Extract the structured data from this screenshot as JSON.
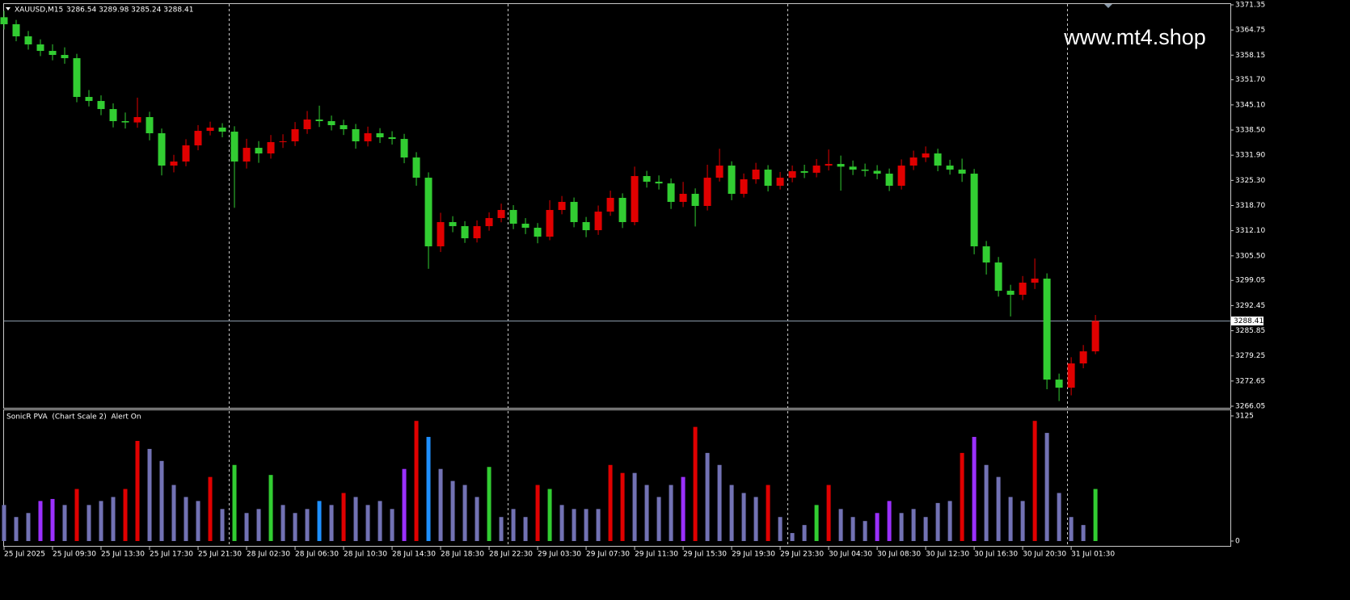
{
  "chart_data": [
    {
      "type": "candlestick",
      "symbol": "XAUUSD,M15",
      "quote": "3286.54 3289.98 3285.24 3288.41",
      "watermark": "www.mt4.shop",
      "up_color": "#e00000",
      "down_color": "#32cd32",
      "price_line": 3288.41,
      "price_line_color": "#8a9aaa",
      "xlim": [
        0,
        404.5
      ],
      "ylim": [
        3266.05,
        3371.35
      ],
      "yticks": [
        {
          "value": 3371.35,
          "label": "3371.35"
        },
        3364.75,
        3358.15,
        {
          "value": 3351.7,
          "label": "3351.70"
        },
        {
          "value": 3345.1,
          "label": "3345.10"
        },
        {
          "value": 3338.5,
          "label": "3338.50"
        },
        {
          "value": 3331.9,
          "label": "3331.90"
        },
        {
          "value": 3325.3,
          "label": "3325.30"
        },
        {
          "value": 3318.7,
          "label": "3318.70"
        },
        {
          "value": 3312.1,
          "label": "3312.10"
        },
        {
          "value": 3305.5,
          "label": "3305.50"
        },
        3299.05,
        3292.45,
        3285.85,
        3279.25,
        3272.65,
        3266.05
      ],
      "x": [
        0,
        4,
        8,
        12,
        16,
        20,
        24,
        28,
        32,
        36,
        40,
        44,
        48,
        52,
        56,
        60,
        64,
        68,
        72,
        76,
        80,
        84,
        88,
        92,
        96,
        100,
        104,
        108,
        112,
        116,
        120,
        124,
        128,
        132,
        136,
        140,
        144,
        148,
        152,
        156,
        160,
        164,
        168,
        172,
        176,
        180,
        184,
        188,
        192,
        196,
        200,
        204,
        208,
        212,
        216,
        220,
        224,
        228,
        232,
        236,
        240,
        244,
        248,
        252,
        256,
        260,
        264,
        268,
        272,
        276,
        280,
        284,
        288,
        292,
        296,
        300,
        304,
        308,
        312,
        316,
        320,
        324,
        328,
        332,
        336,
        340,
        344,
        348,
        352,
        356,
        360
      ],
      "open": [
        3368.1,
        3366.26,
        3363.09,
        3360.97,
        3359.27,
        3358.21,
        3357.36,
        3347.19,
        3346.13,
        3344.01,
        3340.84,
        3340.5,
        3341.9,
        3337.66,
        3329.18,
        3330.24,
        3334.48,
        3338.29,
        3339.14,
        3338.08,
        3330.24,
        3333.84,
        3332.36,
        3335.33,
        3335.54,
        3338.72,
        3341.26,
        3340.84,
        3339.78,
        3338.72,
        3335.54,
        3337.66,
        3336.6,
        3336.17,
        3331.3,
        3326.0,
        3307.99,
        3314.35,
        3313.29,
        3310.11,
        3313.29,
        3315.41,
        3317.53,
        3313.93,
        3312.87,
        3310.53,
        3317.53,
        3319.65,
        3314.35,
        3312.23,
        3317.1,
        3320.71,
        3314.35,
        3326.43,
        3324.94,
        3324.5,
        3319.65,
        3321.77,
        3318.59,
        3326.0,
        3329.18,
        3321.77,
        3325.58,
        3328.12,
        3323.88,
        3326.0,
        3327.7,
        3327.3,
        3329.18,
        3329.6,
        3328.9,
        3328.12,
        3327.8,
        3327.06,
        3323.88,
        3329.18,
        3331.3,
        3332.36,
        3329.18,
        3328.12,
        3327.06,
        3307.99,
        3303.75,
        3296.34,
        3295.28,
        3298.46,
        3299.52,
        3273.03,
        3270.91,
        3277.27,
        3280.44
      ],
      "high": [
        3369.8,
        3367.4,
        3364.5,
        3362.3,
        3361.0,
        3360.2,
        3358.5,
        3349.0,
        3347.6,
        3345.5,
        3343.1,
        3347.0,
        3343.3,
        3338.9,
        3332.0,
        3336.1,
        3339.8,
        3340.7,
        3340.3,
        3339.5,
        3336.2,
        3335.6,
        3337.2,
        3337.4,
        3340.6,
        3343.5,
        3344.9,
        3342.3,
        3341.2,
        3340.1,
        3339.4,
        3339.0,
        3338.2,
        3337.5,
        3332.7,
        3327.4,
        3316.8,
        3315.9,
        3314.6,
        3314.8,
        3316.9,
        3319.2,
        3318.8,
        3315.4,
        3314.1,
        3320.1,
        3321.2,
        3320.8,
        3315.7,
        3318.7,
        3322.6,
        3321.9,
        3328.9,
        3327.8,
        3326.6,
        3325.8,
        3324.9,
        3323.2,
        3329.4,
        3333.6,
        3330.3,
        3327.1,
        3329.9,
        3329.3,
        3327.5,
        3329.2,
        3329.4,
        3330.9,
        3333.4,
        3331.8,
        3330.5,
        3329.7,
        3329.3,
        3328.4,
        3330.8,
        3333.1,
        3334.2,
        3333.6,
        3330.7,
        3331.0,
        3328.3,
        3309.4,
        3305.2,
        3297.9,
        3300.2,
        3304.8,
        3300.9,
        3274.6,
        3278.9,
        3282.1,
        3289.98
      ],
      "low": [
        3364.9,
        3361.8,
        3359.6,
        3357.9,
        3356.8,
        3355.9,
        3345.8,
        3344.7,
        3342.4,
        3339.2,
        3338.9,
        3339.1,
        3335.8,
        3326.6,
        3327.4,
        3329.0,
        3333.2,
        3337.1,
        3336.6,
        3318.1,
        3328.4,
        3329.9,
        3331.0,
        3333.8,
        3334.3,
        3337.5,
        3339.3,
        3338.4,
        3337.2,
        3333.6,
        3334.2,
        3335.1,
        3334.7,
        3329.8,
        3323.9,
        3302.1,
        3306.5,
        3311.7,
        3308.9,
        3309.0,
        3312.1,
        3314.3,
        3312.5,
        3311.2,
        3308.8,
        3309.6,
        3316.4,
        3313.0,
        3310.4,
        3311.0,
        3316.0,
        3312.8,
        3313.5,
        3323.4,
        3322.9,
        3317.8,
        3318.3,
        3313.2,
        3317.4,
        3325.0,
        3320.1,
        3320.8,
        3324.4,
        3322.4,
        3322.9,
        3324.8,
        3325.9,
        3326.1,
        3327.9,
        3322.6,
        3326.7,
        3326.3,
        3325.6,
        3322.5,
        3322.9,
        3328.0,
        3330.1,
        3327.7,
        3326.8,
        3324.9,
        3305.9,
        3300.6,
        3294.8,
        3289.6,
        3293.9,
        3296.8,
        3270.5,
        3267.4,
        3268.9,
        3276.0,
        3279.7
      ],
      "close": [
        3366.26,
        3363.09,
        3360.97,
        3359.27,
        3358.21,
        3357.36,
        3347.19,
        3346.13,
        3344.01,
        3340.84,
        3340.5,
        3341.9,
        3337.66,
        3329.18,
        3330.24,
        3334.48,
        3338.29,
        3339.14,
        3338.08,
        3330.24,
        3333.84,
        3332.36,
        3335.33,
        3335.54,
        3338.72,
        3341.26,
        3340.84,
        3339.78,
        3338.72,
        3335.54,
        3337.66,
        3336.6,
        3336.17,
        3331.3,
        3326.0,
        3307.99,
        3314.35,
        3313.29,
        3310.11,
        3313.29,
        3315.41,
        3317.53,
        3313.93,
        3312.87,
        3310.53,
        3317.53,
        3319.65,
        3314.35,
        3312.23,
        3317.1,
        3320.71,
        3314.35,
        3326.43,
        3324.94,
        3324.5,
        3319.65,
        3321.77,
        3318.59,
        3326.0,
        3329.18,
        3321.77,
        3325.58,
        3328.12,
        3323.88,
        3326.0,
        3327.7,
        3327.3,
        3329.18,
        3329.6,
        3328.9,
        3328.12,
        3327.8,
        3327.06,
        3323.88,
        3329.18,
        3331.3,
        3332.36,
        3329.18,
        3328.12,
        3327.06,
        3307.99,
        3303.75,
        3296.34,
        3295.28,
        3298.46,
        3299.52,
        3273.03,
        3270.91,
        3277.27,
        3280.44,
        3288.41
      ]
    },
    {
      "type": "bar",
      "title": "SonicR PVA  (Chart Scale 2)  Alert On",
      "xlim": [
        0,
        404.5
      ],
      "ylim": [
        0,
        3125
      ],
      "yticks": [
        0,
        3125
      ],
      "xticks": [
        {
          "value": 0,
          "label": "25 Jul 2025"
        },
        {
          "value": 16,
          "label": "25 Jul 09:30"
        },
        {
          "value": 32,
          "label": "25 Jul 13:30"
        },
        {
          "value": 48,
          "label": "25 Jul 17:30"
        },
        {
          "value": 64,
          "label": "25 Jul 21:30"
        },
        {
          "value": 80,
          "label": "28 Jul 02:30"
        },
        {
          "value": 96,
          "label": "28 Jul 06:30"
        },
        {
          "value": 112,
          "label": "28 Jul 10:30"
        },
        {
          "value": 128,
          "label": "28 Jul 14:30"
        },
        {
          "value": 144,
          "label": "28 Jul 18:30"
        },
        {
          "value": 160,
          "label": "28 Jul 22:30"
        },
        {
          "value": 176,
          "label": "29 Jul 03:30"
        },
        {
          "value": 192,
          "label": "29 Jul 07:30"
        },
        {
          "value": 208,
          "label": "29 Jul 11:30"
        },
        {
          "value": 224,
          "label": "29 Jul 15:30"
        },
        {
          "value": 240,
          "label": "29 Jul 19:30"
        },
        {
          "value": 256,
          "label": "29 Jul 23:30"
        },
        {
          "value": 272,
          "label": "30 Jul 04:30"
        },
        {
          "value": 288,
          "label": "30 Jul 08:30"
        },
        {
          "value": 304,
          "label": "30 Jul 12:30"
        },
        {
          "value": 320,
          "label": "30 Jul 16:30"
        },
        {
          "value": 336,
          "label": "30 Jul 20:30"
        },
        {
          "value": 352,
          "label": "31 Jul 01:30"
        }
      ],
      "x": [
        0,
        4,
        8,
        12,
        16,
        20,
        24,
        28,
        32,
        36,
        40,
        44,
        48,
        52,
        56,
        60,
        64,
        68,
        72,
        76,
        80,
        84,
        88,
        92,
        96,
        100,
        104,
        108,
        112,
        116,
        120,
        124,
        128,
        132,
        136,
        140,
        144,
        148,
        152,
        156,
        160,
        164,
        168,
        172,
        176,
        180,
        184,
        188,
        192,
        196,
        200,
        204,
        208,
        212,
        216,
        220,
        224,
        228,
        232,
        236,
        240,
        244,
        248,
        252,
        256,
        260,
        264,
        268,
        272,
        276,
        280,
        284,
        288,
        292,
        296,
        300,
        304,
        308,
        312,
        316,
        320,
        324,
        328,
        332,
        336,
        340,
        344,
        348,
        352,
        356,
        360
      ],
      "values": [
        900,
        600,
        700,
        1000,
        1050,
        900,
        1300,
        900,
        1000,
        1100,
        1300,
        2500,
        2300,
        2000,
        1400,
        1100,
        1000,
        1600,
        800,
        1900,
        700,
        800,
        1650,
        900,
        700,
        800,
        1000,
        900,
        1200,
        1100,
        900,
        1000,
        800,
        1800,
        3000,
        2600,
        1800,
        1500,
        1400,
        1100,
        1850,
        600,
        800,
        600,
        1400,
        1300,
        900,
        800,
        800,
        800,
        1900,
        1700,
        1700,
        1400,
        1100,
        1400,
        1600,
        2850,
        2200,
        1900,
        1400,
        1200,
        1100,
        1400,
        600,
        200,
        400,
        900,
        1400,
        800,
        600,
        500,
        700,
        1000,
        700,
        800,
        600,
        950,
        1000,
        2200,
        2600,
        1900,
        1600,
        1100,
        1000,
        3000,
        2700,
        1200,
        600,
        400,
        1300
      ],
      "colors": [
        "#7272b4",
        "#7272b4",
        "#7272b4",
        "#9b30ff",
        "#9b30ff",
        "#7272b4",
        "#e00000",
        "#7272b4",
        "#7272b4",
        "#7272b4",
        "#e00000",
        "#e00000",
        "#7272b4",
        "#7272b4",
        "#7272b4",
        "#7272b4",
        "#7272b4",
        "#e00000",
        "#7272b4",
        "#32cd32",
        "#7272b4",
        "#7272b4",
        "#32cd32",
        "#7272b4",
        "#7272b4",
        "#7272b4",
        "#1e90ff",
        "#7272b4",
        "#e00000",
        "#7272b4",
        "#7272b4",
        "#7272b4",
        "#7272b4",
        "#9b30ff",
        "#e00000",
        "#1e90ff",
        "#7272b4",
        "#7272b4",
        "#7272b4",
        "#7272b4",
        "#32cd32",
        "#7272b4",
        "#7272b4",
        "#7272b4",
        "#e00000",
        "#32cd32",
        "#7272b4",
        "#7272b4",
        "#7272b4",
        "#7272b4",
        "#e00000",
        "#e00000",
        "#7272b4",
        "#7272b4",
        "#7272b4",
        "#7272b4",
        "#9b30ff",
        "#e00000",
        "#7272b4",
        "#7272b4",
        "#7272b4",
        "#7272b4",
        "#7272b4",
        "#e00000",
        "#7272b4",
        "#7272b4",
        "#7272b4",
        "#32cd32",
        "#e00000",
        "#7272b4",
        "#7272b4",
        "#7272b4",
        "#9b30ff",
        "#9b30ff",
        "#7272b4",
        "#7272b4",
        "#7272b4",
        "#7272b4",
        "#7272b4",
        "#e00000",
        "#9b30ff",
        "#7272b4",
        "#7272b4",
        "#7272b4",
        "#7272b4",
        "#e00000",
        "#7272b4",
        "#7272b4",
        "#7272b4",
        "#7272b4",
        "#32cd32"
      ]
    }
  ]
}
